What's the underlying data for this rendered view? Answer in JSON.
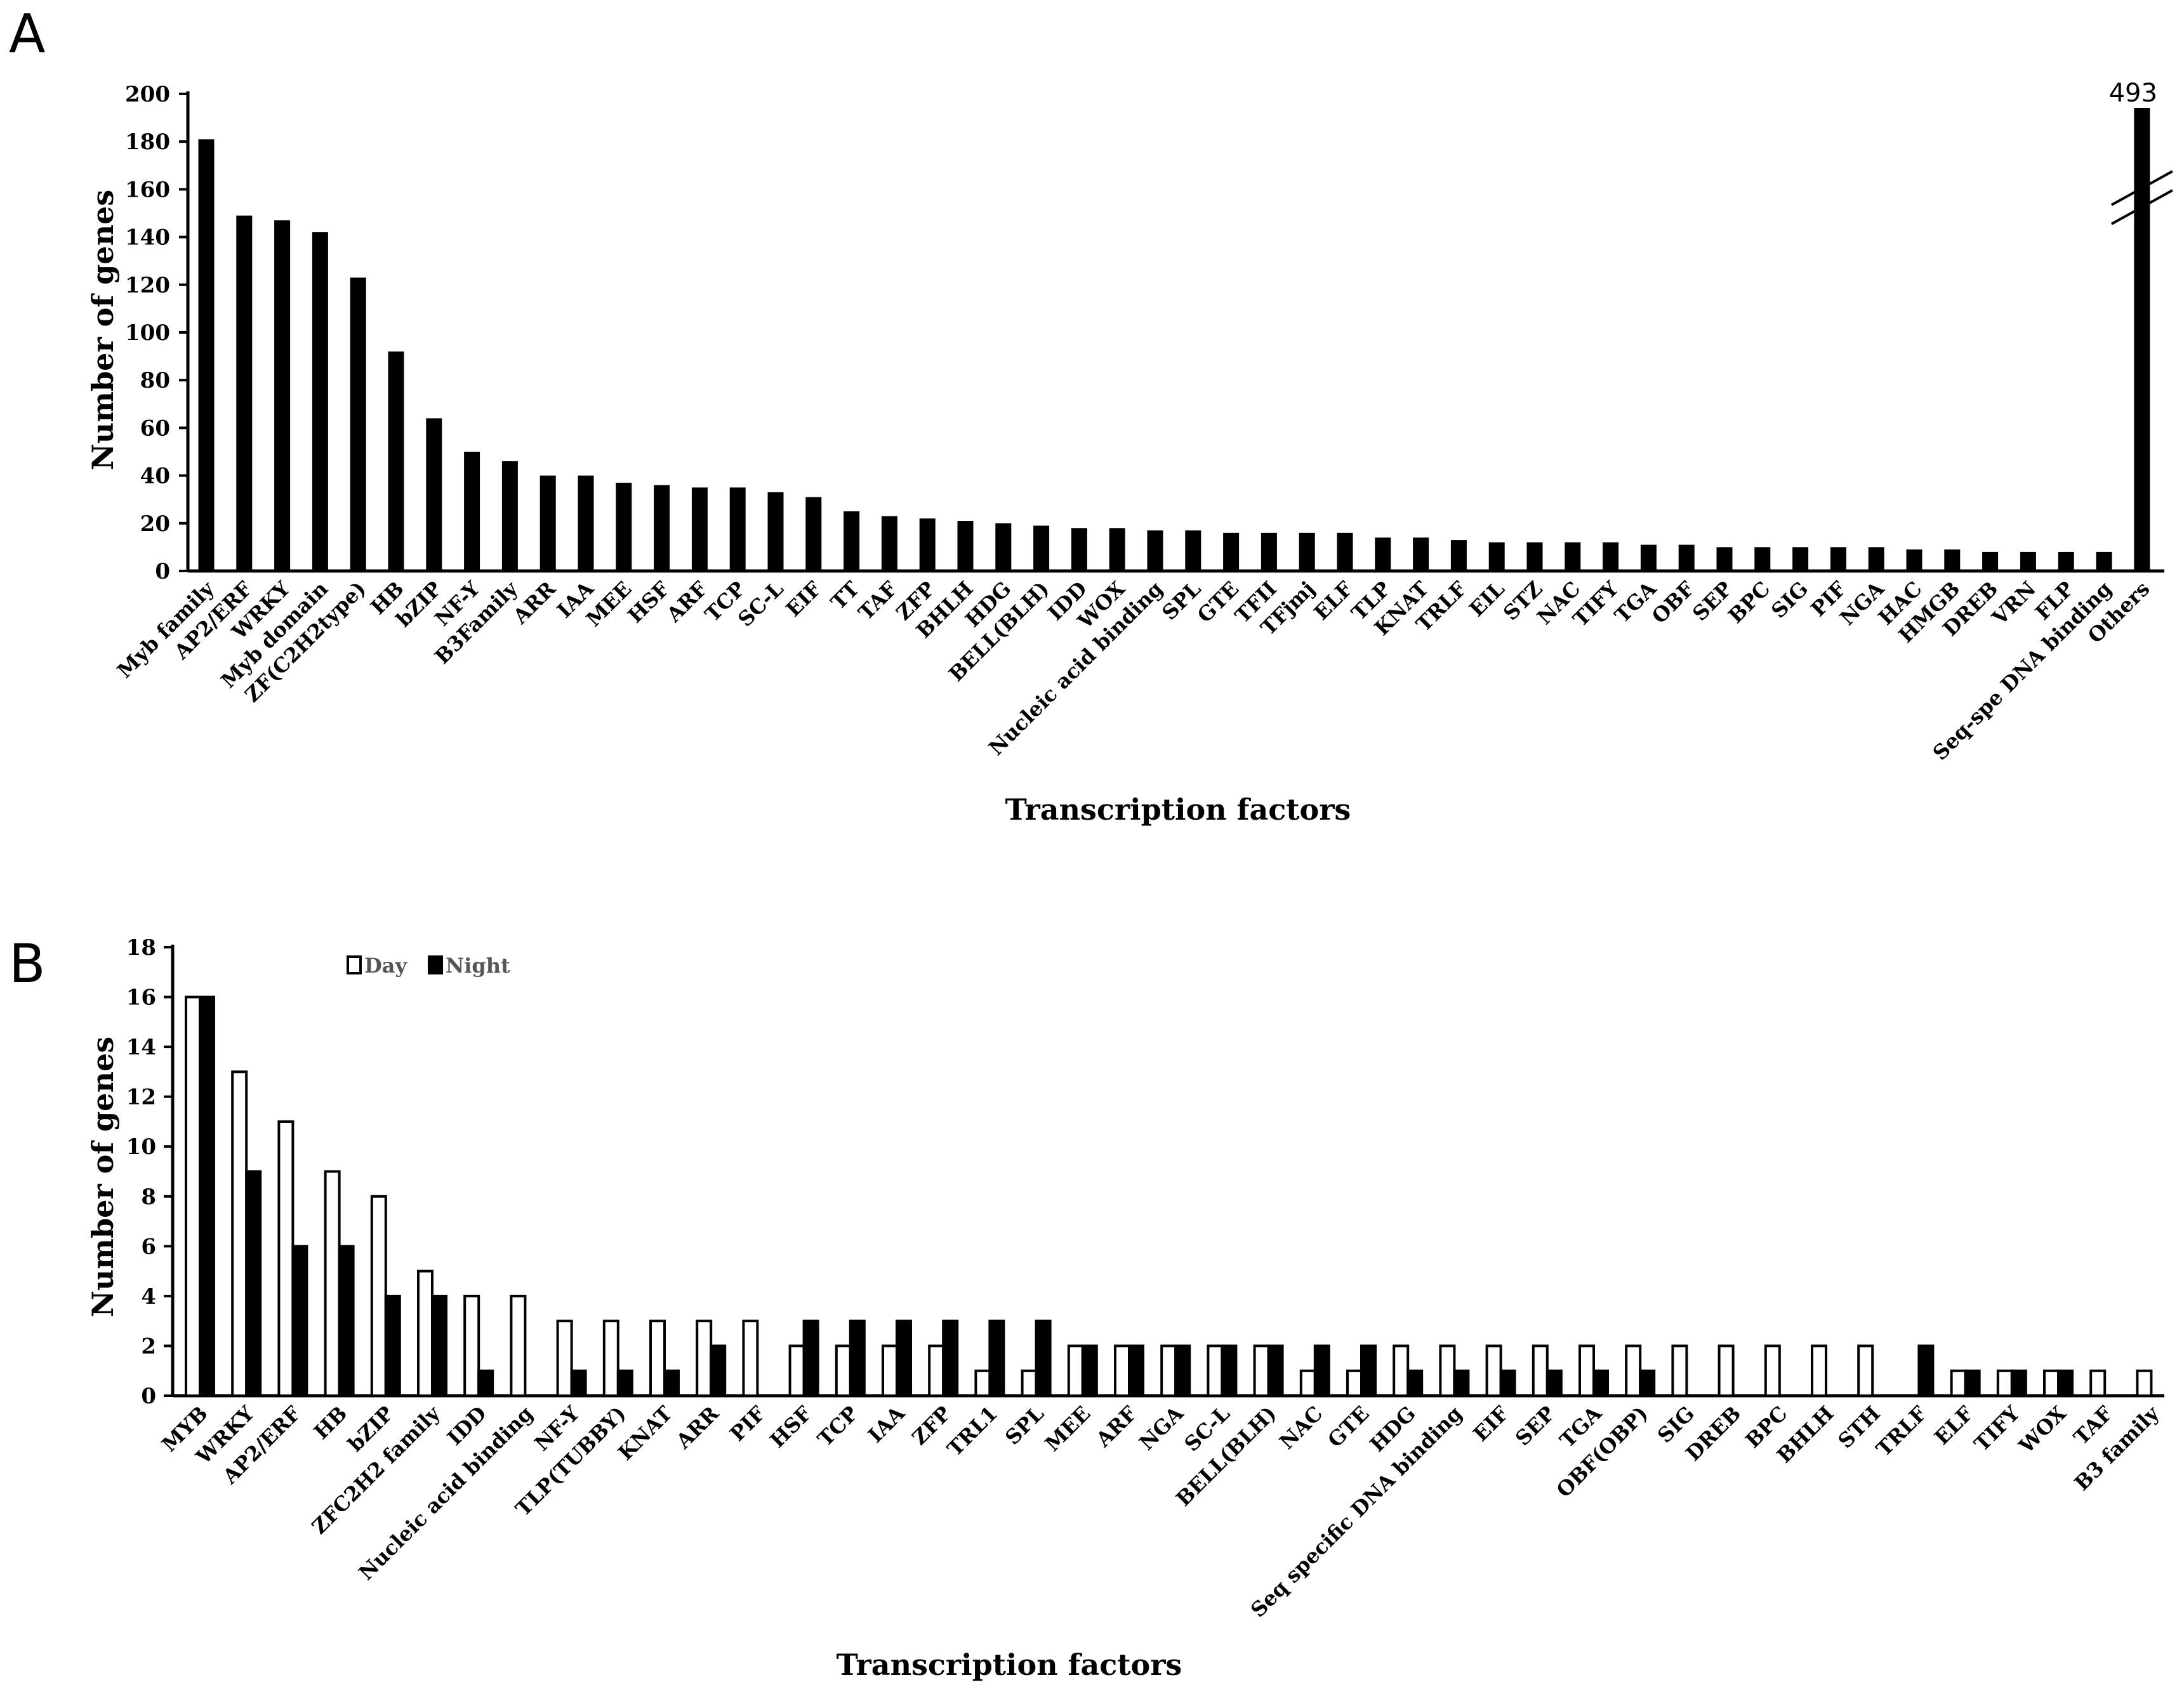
{
  "chart_data": [
    {
      "panel": "A",
      "type": "bar",
      "title": "",
      "xlabel": "Transcription factors",
      "ylabel": "Number  of  genes",
      "ylim": [
        0,
        200
      ],
      "yticks": [
        0,
        20,
        40,
        60,
        80,
        100,
        120,
        140,
        160,
        180,
        200
      ],
      "axis_break": "Others",
      "annotation": {
        "category": "Others",
        "text": "493"
      },
      "categories": [
        "Myb  family",
        "AP2/ERF",
        "WRKY",
        "Myb domain",
        "ZF(C2H2type)",
        "HB",
        "bZIP",
        "NF-Y",
        "B3Family",
        "ARR",
        "IAA",
        "MEE",
        "HSF",
        "ARF",
        "TCP",
        "SC-L",
        "EIF",
        "TT",
        "TAF",
        "ZFP",
        "BHLH",
        "HDG",
        "BELL(BLH)",
        "IDD",
        "WOX",
        "Nucleic acid binding",
        "SPL",
        "GTE",
        "TFII",
        "TFjmj",
        "ELF",
        "TLP",
        "KNAT",
        "TRLF",
        "EIL",
        "STZ",
        "NAC",
        "TIFY",
        "TGA",
        "OBF",
        "SEP",
        "BPC",
        "SIG",
        "PIF",
        "NGA",
        "HAC",
        "HMGB",
        "DREB",
        "VRN",
        "FLP",
        "Seq-spe DNA binding",
        "Others"
      ],
      "values": [
        181,
        149,
        147,
        142,
        123,
        92,
        64,
        50,
        46,
        40,
        40,
        37,
        36,
        35,
        35,
        33,
        31,
        25,
        23,
        22,
        21,
        20,
        19,
        18,
        18,
        17,
        17,
        16,
        16,
        16,
        16,
        14,
        14,
        13,
        12,
        12,
        12,
        12,
        11,
        11,
        10,
        10,
        10,
        10,
        10,
        9,
        9,
        8,
        8,
        8,
        8,
        493
      ]
    },
    {
      "panel": "B",
      "type": "bar",
      "title": "",
      "xlabel": "Transcription factors",
      "ylabel": "Number  of  genes",
      "ylim": [
        0,
        18
      ],
      "yticks": [
        0,
        2,
        4,
        6,
        8,
        10,
        12,
        14,
        16,
        18
      ],
      "legend": {
        "position": "top-left"
      },
      "categories": [
        "MYB",
        "WRKY",
        "AP2/ERF",
        "HB",
        "bZIP",
        "ZFC2H2 family",
        "IDD",
        "Nucleic acid binding",
        "NF-Y",
        "TLP(TUBBY)",
        "KNAT",
        "ARR",
        "PIF",
        "HSF",
        "TCP",
        "IAA",
        "ZFP",
        "TRL1",
        "SPL",
        "MEE",
        "ARF",
        "NGA",
        "SC-L",
        "BELL(BLH)",
        "NAC",
        "GTE",
        "HDG",
        "Seq specific DNA binding",
        "EIF",
        "SEP",
        "TGA",
        "OBF(OBP)",
        "SIG",
        "DREB",
        "BPC",
        "BHLH",
        "STH",
        "TRLF",
        "ELF",
        "TIFY",
        "WOX",
        "TAF",
        "B3 family"
      ],
      "series": [
        {
          "name": "Day",
          "color": "#ffffff",
          "values": [
            16,
            13,
            11,
            9,
            8,
            5,
            4,
            4,
            3,
            3,
            3,
            3,
            3,
            2,
            2,
            2,
            2,
            1,
            1,
            2,
            2,
            2,
            2,
            2,
            1,
            1,
            2,
            2,
            2,
            2,
            2,
            2,
            2,
            2,
            2,
            2,
            2,
            0,
            1,
            1,
            1,
            1,
            1
          ]
        },
        {
          "name": "Night",
          "color": "#000000",
          "values": [
            16,
            9,
            6,
            6,
            4,
            4,
            1,
            0,
            1,
            1,
            1,
            2,
            0,
            3,
            3,
            3,
            3,
            3,
            3,
            2,
            2,
            2,
            2,
            2,
            2,
            2,
            1,
            1,
            1,
            1,
            1,
            1,
            0,
            0,
            0,
            0,
            0,
            2,
            1,
            1,
            1,
            0,
            0
          ]
        }
      ]
    }
  ]
}
